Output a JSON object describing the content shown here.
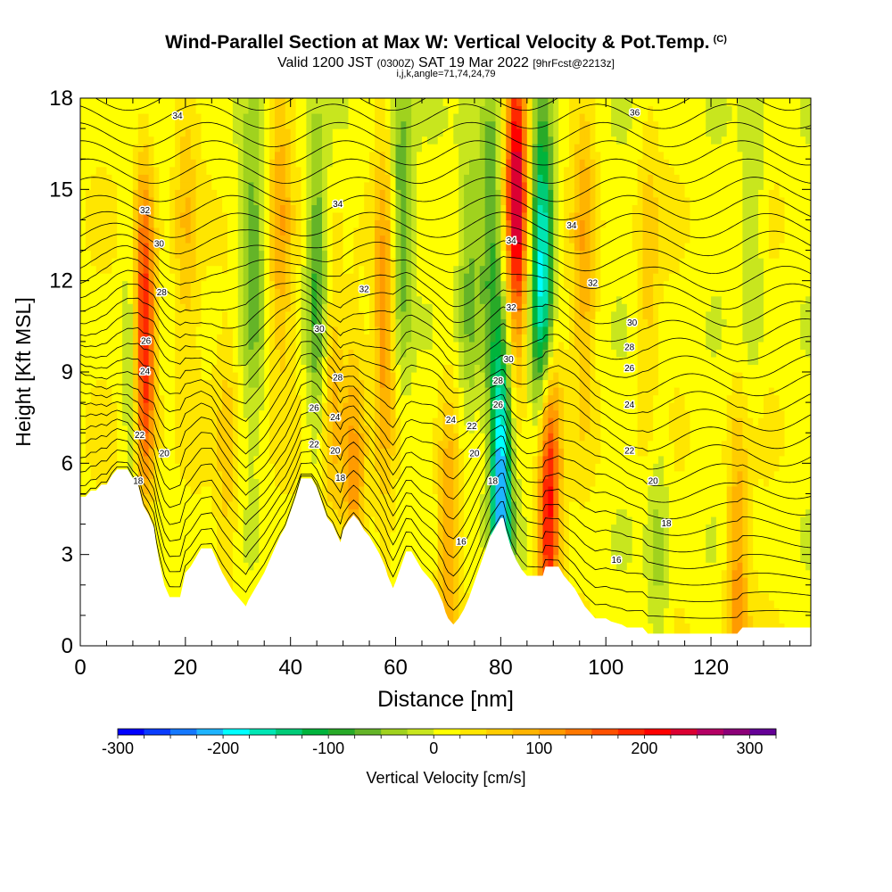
{
  "header": {
    "title": "Wind-Parallel Section at Max W: Vertical Velocity & Pot.Temp.",
    "copyright": "(C)",
    "subtitle_a": "Valid 1200 JST",
    "subtitle_b": "(0300Z)",
    "subtitle_c": "SAT 19 Mar 2022",
    "subtitle_d": "[9hrFcst@2213z]",
    "subline": "i,j,k,angle=71,74,24,79"
  },
  "colorbar": {
    "label": "Vertical Velocity [cm/s]",
    "min": -300,
    "max": 325,
    "step": 25,
    "tick_values": [
      -300,
      -200,
      -100,
      0,
      100,
      200,
      300
    ],
    "tick_labels": [
      "-300",
      "-200",
      "-100",
      "0",
      "100",
      "200",
      "300"
    ],
    "colors": [
      "#0000ff",
      "#0a3cff",
      "#1478ff",
      "#1eb4ff",
      "#00ffff",
      "#00e6b4",
      "#00cc78",
      "#00b43c",
      "#28aa28",
      "#64b428",
      "#a0d21e",
      "#c8e61e",
      "#ffff00",
      "#ffe600",
      "#ffcd00",
      "#ffb400",
      "#ff9b00",
      "#ff7800",
      "#ff5000",
      "#ff2800",
      "#ff0000",
      "#dc0032",
      "#b40064",
      "#8c0078",
      "#640096"
    ]
  },
  "chart_data": {
    "type": "heatmap",
    "xlabel": "Distance [nm]",
    "ylabel": "Height [Kft MSL]",
    "xlim": [
      0,
      139
    ],
    "ylim": [
      0,
      18
    ],
    "xticks": [
      0,
      20,
      40,
      60,
      80,
      100,
      120
    ],
    "xtick_labels": [
      "0",
      "20",
      "40",
      "60",
      "80",
      "100",
      "120"
    ],
    "yticks": [
      0,
      3,
      6,
      9,
      12,
      15,
      18
    ],
    "ytick_labels": [
      "0",
      "3",
      "6",
      "9",
      "12",
      "15",
      "18"
    ],
    "terrain_height_kft": [
      [
        0,
        4.9
      ],
      [
        1,
        4.9
      ],
      [
        2,
        5.1
      ],
      [
        3,
        5.1
      ],
      [
        4,
        5.3
      ],
      [
        5,
        5.3
      ],
      [
        6,
        5.6
      ],
      [
        7,
        5.8
      ],
      [
        9,
        5.8
      ],
      [
        10,
        5.5
      ],
      [
        11,
        5.3
      ],
      [
        12,
        4.6
      ],
      [
        13,
        4.3
      ],
      [
        14,
        3.9
      ],
      [
        14.5,
        3.3
      ],
      [
        15,
        2.8
      ],
      [
        15.5,
        2.4
      ],
      [
        16,
        2.0
      ],
      [
        16.5,
        1.8
      ],
      [
        17,
        1.6
      ],
      [
        19,
        1.6
      ],
      [
        19.5,
        2.0
      ],
      [
        20,
        2.4
      ],
      [
        21,
        2.6
      ],
      [
        22,
        2.9
      ],
      [
        23,
        3.2
      ],
      [
        25,
        3.2
      ],
      [
        26,
        2.8
      ],
      [
        27,
        2.4
      ],
      [
        28,
        2.1
      ],
      [
        29,
        1.8
      ],
      [
        30,
        1.6
      ],
      [
        31,
        1.4
      ],
      [
        31.5,
        1.3
      ],
      [
        32,
        1.5
      ],
      [
        33,
        1.8
      ],
      [
        34,
        2.1
      ],
      [
        35,
        2.4
      ],
      [
        36,
        2.8
      ],
      [
        37,
        3.2
      ],
      [
        38,
        3.6
      ],
      [
        39,
        3.9
      ],
      [
        40,
        4.4
      ],
      [
        41,
        4.9
      ],
      [
        42,
        5.5
      ],
      [
        44,
        5.5
      ],
      [
        45,
        5.2
      ],
      [
        46,
        4.7
      ],
      [
        47,
        4.2
      ],
      [
        48,
        4.0
      ],
      [
        49,
        3.6
      ],
      [
        49.5,
        3.4
      ],
      [
        50,
        3.8
      ],
      [
        51,
        4.1
      ],
      [
        52,
        4.3
      ],
      [
        53,
        4.1
      ],
      [
        54,
        3.8
      ],
      [
        55,
        3.6
      ],
      [
        56,
        3.3
      ],
      [
        57,
        3.0
      ],
      [
        58,
        2.6
      ],
      [
        58.5,
        2.3
      ],
      [
        59,
        2.1
      ],
      [
        59.5,
        1.9
      ],
      [
        60,
        2.1
      ],
      [
        61,
        2.6
      ],
      [
        62,
        3.1
      ],
      [
        63,
        3.1
      ],
      [
        64,
        2.8
      ],
      [
        65,
        2.5
      ],
      [
        66,
        2.3
      ],
      [
        67,
        2.1
      ],
      [
        68,
        1.8
      ],
      [
        69,
        1.4
      ],
      [
        69.5,
        1.1
      ],
      [
        70,
        0.9
      ],
      [
        71,
        0.7
      ],
      [
        72,
        0.9
      ],
      [
        73,
        1.2
      ],
      [
        74,
        1.6
      ],
      [
        75,
        2.1
      ],
      [
        76,
        2.6
      ],
      [
        77,
        3.1
      ],
      [
        78,
        3.6
      ],
      [
        79,
        3.9
      ],
      [
        80,
        4.2
      ],
      [
        80.5,
        4.2
      ],
      [
        81,
        3.8
      ],
      [
        82,
        3.2
      ],
      [
        83,
        2.8
      ],
      [
        84,
        2.5
      ],
      [
        85,
        2.3
      ],
      [
        88,
        2.3
      ],
      [
        88.5,
        2.6
      ],
      [
        91,
        2.6
      ],
      [
        92,
        2.3
      ],
      [
        93,
        2.1
      ],
      [
        94,
        1.9
      ],
      [
        95,
        1.6
      ],
      [
        96,
        1.3
      ],
      [
        97,
        1.1
      ],
      [
        98,
        0.9
      ],
      [
        100,
        0.9
      ],
      [
        101,
        0.8
      ],
      [
        103,
        0.7
      ],
      [
        104,
        0.6
      ],
      [
        107,
        0.6
      ],
      [
        108,
        0.4
      ],
      [
        125,
        0.4
      ],
      [
        126,
        0.6
      ],
      [
        139,
        0.6
      ]
    ],
    "vertical_velocity_features": [
      {
        "x_nm": 12,
        "z_kft": 10,
        "w_cms": 250
      },
      {
        "x_nm": 10.5,
        "z_kft": 9,
        "w_cms": -100
      },
      {
        "x_nm": 20,
        "z_kft": 14,
        "w_cms": 50
      },
      {
        "x_nm": 33,
        "z_kft": 13,
        "w_cms": -75
      },
      {
        "x_nm": 38,
        "z_kft": 14,
        "w_cms": 75
      },
      {
        "x_nm": 45,
        "z_kft": 12,
        "w_cms": -100
      },
      {
        "x_nm": 48,
        "z_kft": 8,
        "w_cms": 75
      },
      {
        "x_nm": 52,
        "z_kft": 5,
        "w_cms": 100
      },
      {
        "x_nm": 58,
        "z_kft": 11,
        "w_cms": 100
      },
      {
        "x_nm": 61,
        "z_kft": 14,
        "w_cms": -100
      },
      {
        "x_nm": 70,
        "z_kft": 3,
        "w_cms": 100
      },
      {
        "x_nm": 74,
        "z_kft": 12,
        "w_cms": -75
      },
      {
        "x_nm": 78,
        "z_kft": 14,
        "w_cms": -100
      },
      {
        "x_nm": 80,
        "z_kft": 5,
        "w_cms": -250
      },
      {
        "x_nm": 83,
        "z_kft": 15,
        "w_cms": 250
      },
      {
        "x_nm": 88,
        "z_kft": 12,
        "w_cms": -225
      },
      {
        "x_nm": 89,
        "z_kft": 5,
        "w_cms": 225
      },
      {
        "x_nm": 96,
        "z_kft": 13,
        "w_cms": 75
      },
      {
        "x_nm": 108,
        "z_kft": 12,
        "w_cms": 50
      },
      {
        "x_nm": 125,
        "z_kft": 2,
        "w_cms": 100
      },
      {
        "x_nm": 110,
        "z_kft": 3,
        "w_cms": -50
      },
      {
        "x_nm": 128,
        "z_kft": 14,
        "w_cms": -50
      },
      {
        "x_nm": 28,
        "z_kft": 6,
        "w_cms": 50
      }
    ],
    "pot_temp_contour_labels": [
      {
        "text": "34",
        "x_nm": 18.5,
        "z_kft": 17.4
      },
      {
        "text": "32",
        "x_nm": 12.3,
        "z_kft": 14.3
      },
      {
        "text": "30",
        "x_nm": 15.0,
        "z_kft": 13.2
      },
      {
        "text": "28",
        "x_nm": 15.5,
        "z_kft": 11.6
      },
      {
        "text": "26",
        "x_nm": 12.5,
        "z_kft": 10.0
      },
      {
        "text": "24",
        "x_nm": 12.3,
        "z_kft": 9.0
      },
      {
        "text": "22",
        "x_nm": 11.3,
        "z_kft": 6.9
      },
      {
        "text": "20",
        "x_nm": 16.0,
        "z_kft": 6.3
      },
      {
        "text": "18",
        "x_nm": 11.0,
        "z_kft": 5.4
      },
      {
        "text": "34",
        "x_nm": 49.0,
        "z_kft": 14.5
      },
      {
        "text": "32",
        "x_nm": 54.0,
        "z_kft": 11.7
      },
      {
        "text": "30",
        "x_nm": 45.5,
        "z_kft": 10.4
      },
      {
        "text": "28",
        "x_nm": 49.0,
        "z_kft": 8.8
      },
      {
        "text": "26",
        "x_nm": 44.5,
        "z_kft": 7.8
      },
      {
        "text": "24",
        "x_nm": 48.5,
        "z_kft": 7.5
      },
      {
        "text": "22",
        "x_nm": 44.5,
        "z_kft": 6.6
      },
      {
        "text": "20",
        "x_nm": 48.5,
        "z_kft": 6.4
      },
      {
        "text": "18",
        "x_nm": 49.5,
        "z_kft": 5.5
      },
      {
        "text": "24",
        "x_nm": 70.5,
        "z_kft": 7.4
      },
      {
        "text": "22",
        "x_nm": 74.5,
        "z_kft": 7.2
      },
      {
        "text": "20",
        "x_nm": 75.0,
        "z_kft": 6.3
      },
      {
        "text": "18",
        "x_nm": 78.5,
        "z_kft": 5.4
      },
      {
        "text": "16",
        "x_nm": 72.5,
        "z_kft": 3.4
      },
      {
        "text": "34",
        "x_nm": 82.0,
        "z_kft": 13.3
      },
      {
        "text": "32",
        "x_nm": 82.0,
        "z_kft": 11.1
      },
      {
        "text": "30",
        "x_nm": 81.5,
        "z_kft": 9.4
      },
      {
        "text": "28",
        "x_nm": 79.5,
        "z_kft": 8.7
      },
      {
        "text": "26",
        "x_nm": 79.5,
        "z_kft": 7.9
      },
      {
        "text": "34",
        "x_nm": 93.5,
        "z_kft": 13.8
      },
      {
        "text": "32",
        "x_nm": 97.5,
        "z_kft": 11.9
      },
      {
        "text": "30",
        "x_nm": 105.0,
        "z_kft": 10.6
      },
      {
        "text": "28",
        "x_nm": 104.5,
        "z_kft": 9.8
      },
      {
        "text": "26",
        "x_nm": 104.5,
        "z_kft": 9.1
      },
      {
        "text": "24",
        "x_nm": 104.5,
        "z_kft": 7.9
      },
      {
        "text": "22",
        "x_nm": 104.5,
        "z_kft": 6.4
      },
      {
        "text": "20",
        "x_nm": 109.0,
        "z_kft": 5.4
      },
      {
        "text": "18",
        "x_nm": 111.5,
        "z_kft": 4.0
      },
      {
        "text": "16",
        "x_nm": 102.0,
        "z_kft": 2.8
      },
      {
        "text": "36",
        "x_nm": 105.5,
        "z_kft": 17.5
      }
    ]
  }
}
